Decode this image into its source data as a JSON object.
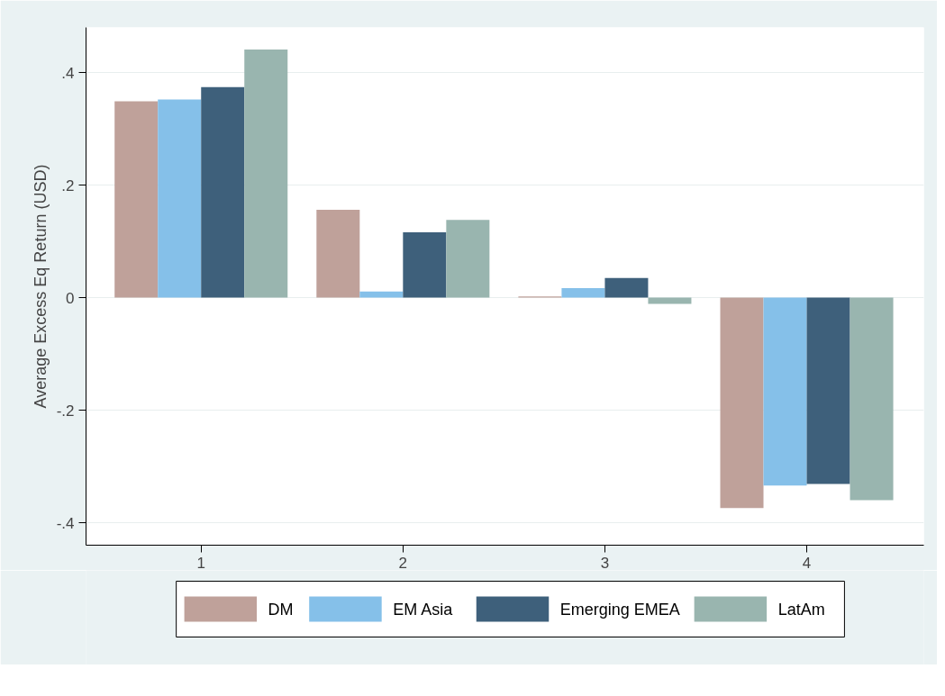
{
  "chart_data": {
    "type": "bar",
    "ylabel": "Average Excess Eq Return (USD)",
    "categories": [
      "1",
      "2",
      "3",
      "4"
    ],
    "series": [
      {
        "name": "DM",
        "color": "#bfa19a",
        "values": [
          0.349,
          0.156,
          0.002,
          -0.374
        ]
      },
      {
        "name": "EM Asia",
        "color": "#85c0e9",
        "values": [
          0.352,
          0.011,
          0.017,
          -0.334
        ]
      },
      {
        "name": "Emerging EMEA",
        "color": "#3e607b",
        "values": [
          0.374,
          0.116,
          0.035,
          -0.331
        ]
      },
      {
        "name": "LatAm",
        "color": "#99b5af",
        "values": [
          0.441,
          0.138,
          -0.011,
          -0.36
        ]
      }
    ],
    "ylim": [
      -0.44,
      0.48
    ],
    "yticks": [
      {
        "value": -0.4,
        "label": "-.4"
      },
      {
        "value": -0.2,
        "label": "-.2"
      },
      0,
      {
        "value": 0.2,
        "label": ".2"
      },
      {
        "value": 0.4,
        "label": ".4"
      }
    ],
    "grid": "y",
    "legend": "bottom"
  }
}
